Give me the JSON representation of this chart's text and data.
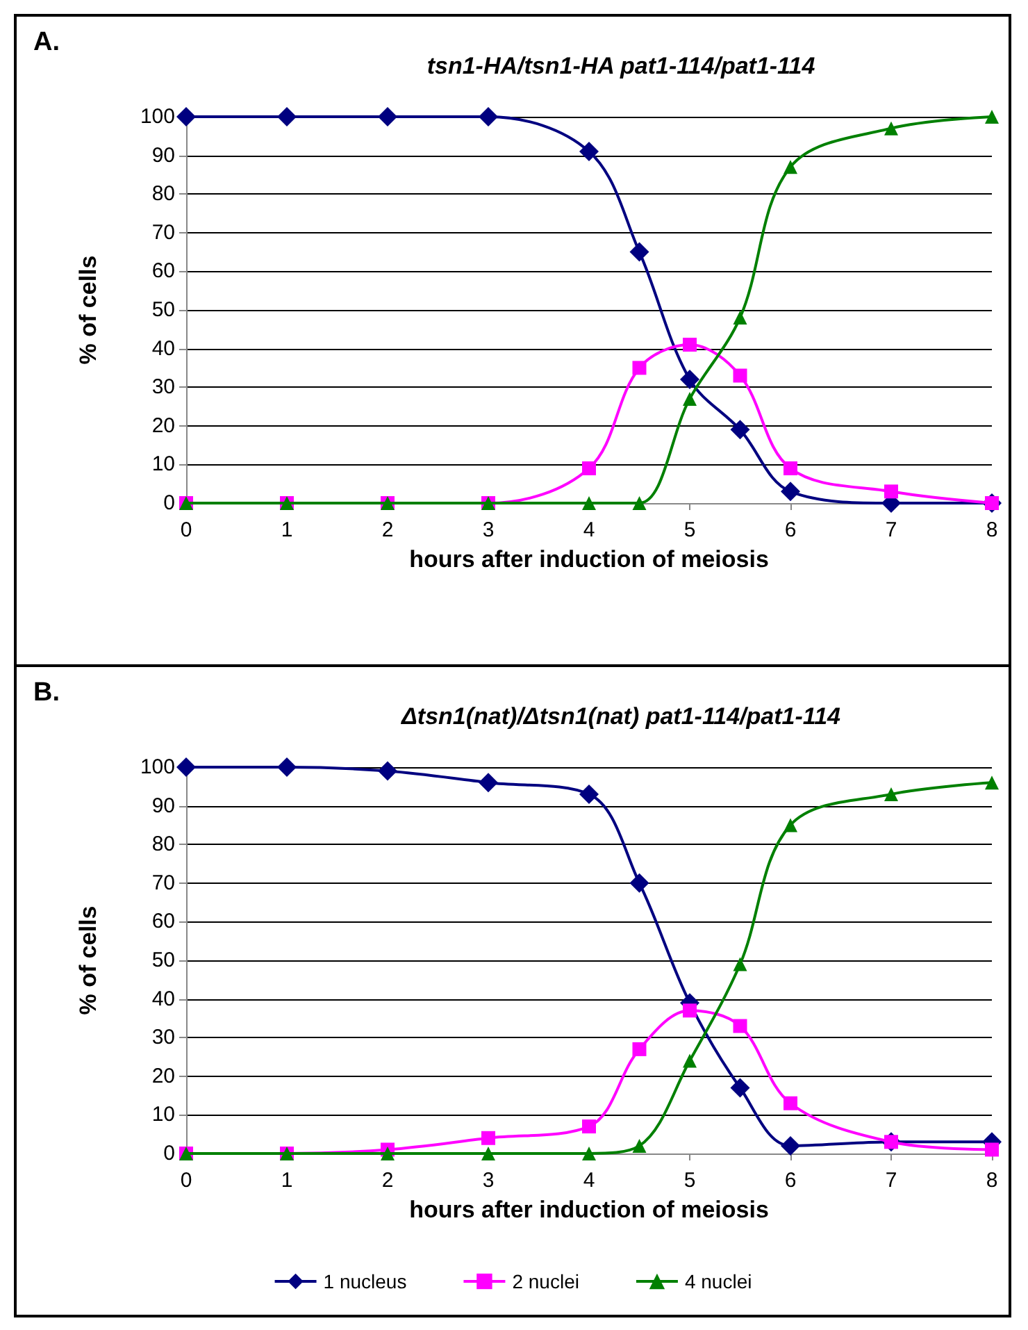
{
  "chart_data": [
    {
      "type": "line",
      "title": "tsn1-HA/tsn1-HA pat1-114/pat1-114",
      "xlabel": "hours after induction of meiosis",
      "ylabel": "% of cells",
      "annotations": [
        "A."
      ],
      "x": [
        0,
        1,
        2,
        3,
        4,
        4.5,
        5,
        5.5,
        6,
        7,
        8
      ],
      "series": [
        {
          "color": "#000080",
          "marker": "diamond",
          "values": [
            100,
            100,
            100,
            100,
            91,
            65,
            32,
            19,
            3,
            0,
            0
          ]
        },
        {
          "color": "#ff00ff",
          "marker": "square",
          "values": [
            0,
            0,
            0,
            0,
            9,
            35,
            41,
            33,
            9,
            3,
            0
          ]
        },
        {
          "color": "#008000",
          "marker": "triangle",
          "values": [
            0,
            0,
            0,
            0,
            0,
            0,
            27,
            48,
            87,
            97,
            100
          ]
        }
      ],
      "xlim": [
        0,
        8
      ],
      "xticks": [
        0,
        1,
        2,
        3,
        4,
        5,
        6,
        7,
        8
      ],
      "ylim": [
        0,
        100
      ],
      "yticks": [
        0,
        10,
        20,
        30,
        40,
        50,
        60,
        70,
        80,
        90,
        100
      ],
      "grid": "y",
      "legend": false
    },
    {
      "type": "line",
      "title": "Δtsn1(nat)/Δtsn1(nat) pat1-114/pat1-114",
      "xlabel": "hours after induction of meiosis",
      "ylabel": "% of cells",
      "annotations": [
        "B."
      ],
      "x": [
        0,
        1,
        2,
        3,
        4,
        4.5,
        5,
        5.5,
        6,
        7,
        8
      ],
      "series": [
        {
          "name": "1 nucleus",
          "color": "#000080",
          "marker": "diamond",
          "values": [
            100,
            100,
            99,
            96,
            93,
            70,
            39,
            17,
            2,
            3,
            3
          ]
        },
        {
          "name": "2 nuclei",
          "color": "#ff00ff",
          "marker": "square",
          "values": [
            0,
            0,
            1,
            4,
            7,
            27,
            37,
            33,
            13,
            3,
            1
          ]
        },
        {
          "name": "4 nuclei",
          "color": "#008000",
          "marker": "triangle",
          "values": [
            0,
            0,
            0,
            0,
            0,
            2,
            24,
            49,
            85,
            93,
            96
          ]
        }
      ],
      "xlim": [
        0,
        8
      ],
      "xticks": [
        0,
        1,
        2,
        3,
        4,
        5,
        6,
        7,
        8
      ],
      "ylim": [
        0,
        100
      ],
      "yticks": [
        0,
        10,
        20,
        30,
        40,
        50,
        60,
        70,
        80,
        90,
        100
      ],
      "grid": "y",
      "legend": "bottom"
    }
  ]
}
